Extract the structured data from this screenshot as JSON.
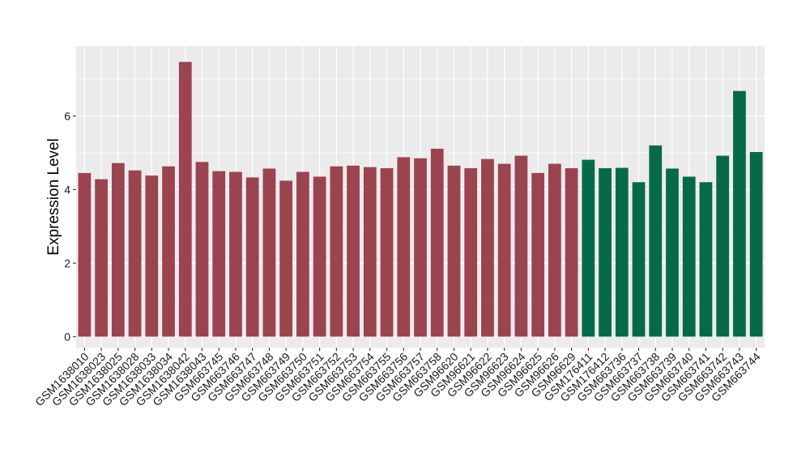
{
  "chart_data": {
    "type": "bar",
    "title": "",
    "xlabel": "",
    "ylabel": "Expression Level",
    "ylim": [
      -0.3,
      7.9
    ],
    "yticks": [
      0,
      2,
      4,
      6
    ],
    "grid": true,
    "background": "#ebebeb",
    "grid_color": "#ffffff",
    "categories": [
      "GSM1638010",
      "GSM1638023",
      "GSM1638025",
      "GSM1638028",
      "GSM1638033",
      "GSM1638034",
      "GSM1638042",
      "GSM1638043",
      "GSM663745",
      "GSM663746",
      "GSM663747",
      "GSM663748",
      "GSM663749",
      "GSM663750",
      "GSM663751",
      "GSM663752",
      "GSM663753",
      "GSM663754",
      "GSM663755",
      "GSM663756",
      "GSM663757",
      "GSM663758",
      "GSM96620",
      "GSM96621",
      "GSM96622",
      "GSM96623",
      "GSM96624",
      "GSM96625",
      "GSM96626",
      "GSM96629",
      "GSM176411",
      "GSM176412",
      "GSM663736",
      "GSM663737",
      "GSM663738",
      "GSM663739",
      "GSM663740",
      "GSM663741",
      "GSM663742",
      "GSM663743",
      "GSM663744"
    ],
    "values": [
      4.45,
      4.28,
      4.72,
      4.52,
      4.38,
      4.63,
      7.47,
      4.75,
      4.5,
      4.48,
      4.33,
      4.57,
      4.24,
      4.48,
      4.35,
      4.63,
      4.65,
      4.61,
      4.58,
      4.88,
      4.85,
      5.11,
      4.65,
      4.58,
      4.83,
      4.7,
      4.92,
      4.45,
      4.7,
      4.58,
      4.81,
      4.58,
      4.59,
      4.2,
      5.2,
      4.57,
      4.35,
      4.2,
      4.92,
      6.68,
      5.02
    ],
    "colors": [
      "#9a4450",
      "#9a4450",
      "#9a4450",
      "#9a4450",
      "#9a4450",
      "#9a4450",
      "#9a4450",
      "#9a4450",
      "#9a4450",
      "#9a4450",
      "#9a4450",
      "#9a4450",
      "#9a4450",
      "#9a4450",
      "#9a4450",
      "#9a4450",
      "#9a4450",
      "#9a4450",
      "#9a4450",
      "#9a4450",
      "#9a4450",
      "#9a4450",
      "#9a4450",
      "#9a4450",
      "#9a4450",
      "#9a4450",
      "#9a4450",
      "#9a4450",
      "#9a4450",
      "#9a4450",
      "#066a48",
      "#066a48",
      "#066a48",
      "#066a48",
      "#066a48",
      "#066a48",
      "#066a48",
      "#066a48",
      "#066a48",
      "#066a48",
      "#066a48"
    ]
  }
}
